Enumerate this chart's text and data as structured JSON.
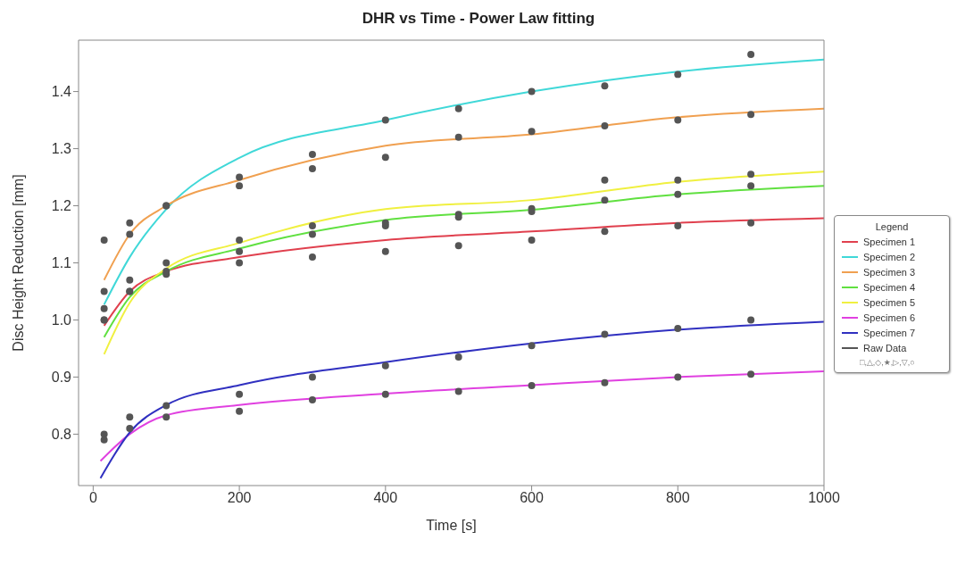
{
  "chart_data": {
    "type": "line",
    "title": "DHR vs Time - Power Law fitting",
    "xlabel": "Time [s]",
    "ylabel": "Disc Height Reduction [mm]",
    "legend_title": "Legend",
    "legend": "right",
    "grid": false,
    "xlim": [
      -20,
      1000
    ],
    "xticks": [
      0,
      200,
      400,
      600,
      800,
      1000
    ],
    "ylim": [
      0.71,
      1.49
    ],
    "yticks": [
      0.8,
      0.9,
      {
        "value": 1,
        "label": "1.0"
      },
      1.1,
      1.2,
      1.3,
      1.4
    ],
    "series": [
      {
        "name": "Specimen 1",
        "color": "#e0404e",
        "x": [
          15,
          50,
          100,
          200,
          400,
          600,
          800,
          1000
        ],
        "values": [
          0.99,
          1.05,
          1.085,
          1.11,
          1.14,
          1.155,
          1.17,
          1.178
        ]
      },
      {
        "name": "Specimen 2",
        "color": "#40d8d8",
        "x": [
          15,
          50,
          100,
          200,
          400,
          600,
          800,
          1000
        ],
        "values": [
          1.027,
          1.11,
          1.194,
          1.284,
          1.35,
          1.4,
          1.435,
          1.456
        ]
      },
      {
        "name": "Specimen 3",
        "color": "#f0a050",
        "x": [
          15,
          50,
          100,
          200,
          400,
          600,
          800,
          1000
        ],
        "values": [
          1.07,
          1.15,
          1.2,
          1.245,
          1.305,
          1.325,
          1.355,
          1.37
        ]
      },
      {
        "name": "Specimen 4",
        "color": "#60e040",
        "x": [
          15,
          50,
          100,
          200,
          400,
          600,
          800,
          1000
        ],
        "values": [
          0.97,
          1.04,
          1.085,
          1.125,
          1.175,
          1.193,
          1.22,
          1.235
        ]
      },
      {
        "name": "Specimen 5",
        "color": "#f0f040",
        "x": [
          15,
          50,
          100,
          200,
          400,
          600,
          800,
          1000
        ],
        "values": [
          0.94,
          1.03,
          1.09,
          1.135,
          1.194,
          1.21,
          1.242,
          1.26
        ]
      },
      {
        "name": "Specimen 6",
        "color": "#e040e0",
        "x": [
          10,
          50,
          100,
          200,
          400,
          600,
          800,
          1000
        ],
        "values": [
          0.753,
          0.8,
          0.833,
          0.851,
          0.871,
          0.886,
          0.9,
          0.91
        ]
      },
      {
        "name": "Specimen 7",
        "color": "#3030c0",
        "x": [
          10,
          50,
          100,
          200,
          400,
          600,
          800,
          1000
        ],
        "values": [
          0.723,
          0.803,
          0.851,
          0.886,
          0.926,
          0.959,
          0.983,
          0.997
        ]
      },
      {
        "name": "Raw Data",
        "type": "scatter",
        "marker": "circle",
        "color": "#555555",
        "x": [
          15,
          50,
          100,
          200,
          300,
          400,
          500,
          600,
          700,
          800,
          900,
          15,
          50,
          100,
          200,
          300,
          400,
          500,
          600,
          700,
          800,
          900,
          15,
          50,
          100,
          200,
          300,
          400,
          500,
          600,
          700,
          800,
          900,
          15,
          50,
          100,
          200,
          300,
          400,
          500,
          600,
          700,
          800,
          900,
          15,
          50,
          100,
          200,
          300,
          400,
          500,
          600,
          700,
          800,
          900,
          15,
          50,
          100,
          200,
          300,
          400,
          500,
          600,
          700,
          800,
          900,
          15,
          50,
          100,
          200,
          300,
          400,
          500,
          600,
          700,
          800,
          900
        ],
        "values": [
          1.0,
          1.05,
          1.08,
          1.1,
          1.11,
          1.12,
          1.13,
          1.14,
          1.155,
          1.165,
          1.17,
          1.02,
          1.15,
          1.2,
          1.25,
          1.29,
          1.35,
          1.37,
          1.4,
          1.41,
          1.43,
          1.465,
          1.14,
          1.17,
          1.2,
          1.235,
          1.265,
          1.285,
          1.32,
          1.33,
          1.34,
          1.35,
          1.36,
          1.0,
          1.05,
          1.085,
          1.12,
          1.15,
          1.165,
          1.18,
          1.195,
          1.21,
          1.22,
          1.235,
          1.05,
          1.07,
          1.1,
          1.14,
          1.165,
          1.17,
          1.185,
          1.19,
          1.245,
          1.245,
          1.255,
          0.8,
          0.81,
          0.83,
          0.84,
          0.86,
          0.87,
          0.875,
          0.885,
          0.89,
          0.9,
          0.905,
          0.79,
          0.83,
          0.85,
          0.87,
          0.9,
          0.92,
          0.935,
          0.955,
          0.975,
          0.985,
          1.0
        ]
      }
    ],
    "annotations": [
      "□,△,◇,★,▷,▽,○"
    ]
  }
}
